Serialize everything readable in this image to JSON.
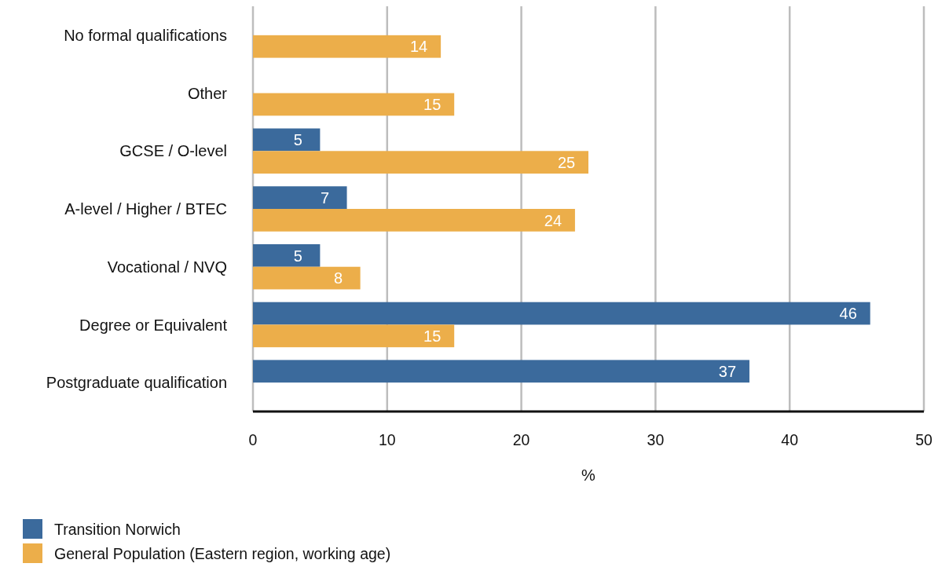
{
  "chart_data": {
    "type": "bar",
    "orientation": "horizontal",
    "xlabel": "%",
    "categories": [
      "No formal qualifications",
      "Other",
      "GCSE / O-level",
      "A-level / Higher / BTEC",
      "Vocational / NVQ",
      "Degree or Equivalent",
      "Postgraduate qualification"
    ],
    "series": [
      {
        "name": "Transition Norwich",
        "color": "#3b6a9c",
        "values": [
          null,
          null,
          5,
          7,
          5,
          46,
          37
        ]
      },
      {
        "name": "General Population (Eastern region, working age)",
        "color": "#ecae4a",
        "values": [
          14,
          15,
          25,
          24,
          8,
          15,
          null
        ]
      }
    ],
    "xlim": [
      0,
      50
    ],
    "xticks": [
      0,
      10,
      20,
      30,
      40,
      50
    ],
    "grid": "x",
    "legend": "bottom left",
    "data_labels": true
  }
}
